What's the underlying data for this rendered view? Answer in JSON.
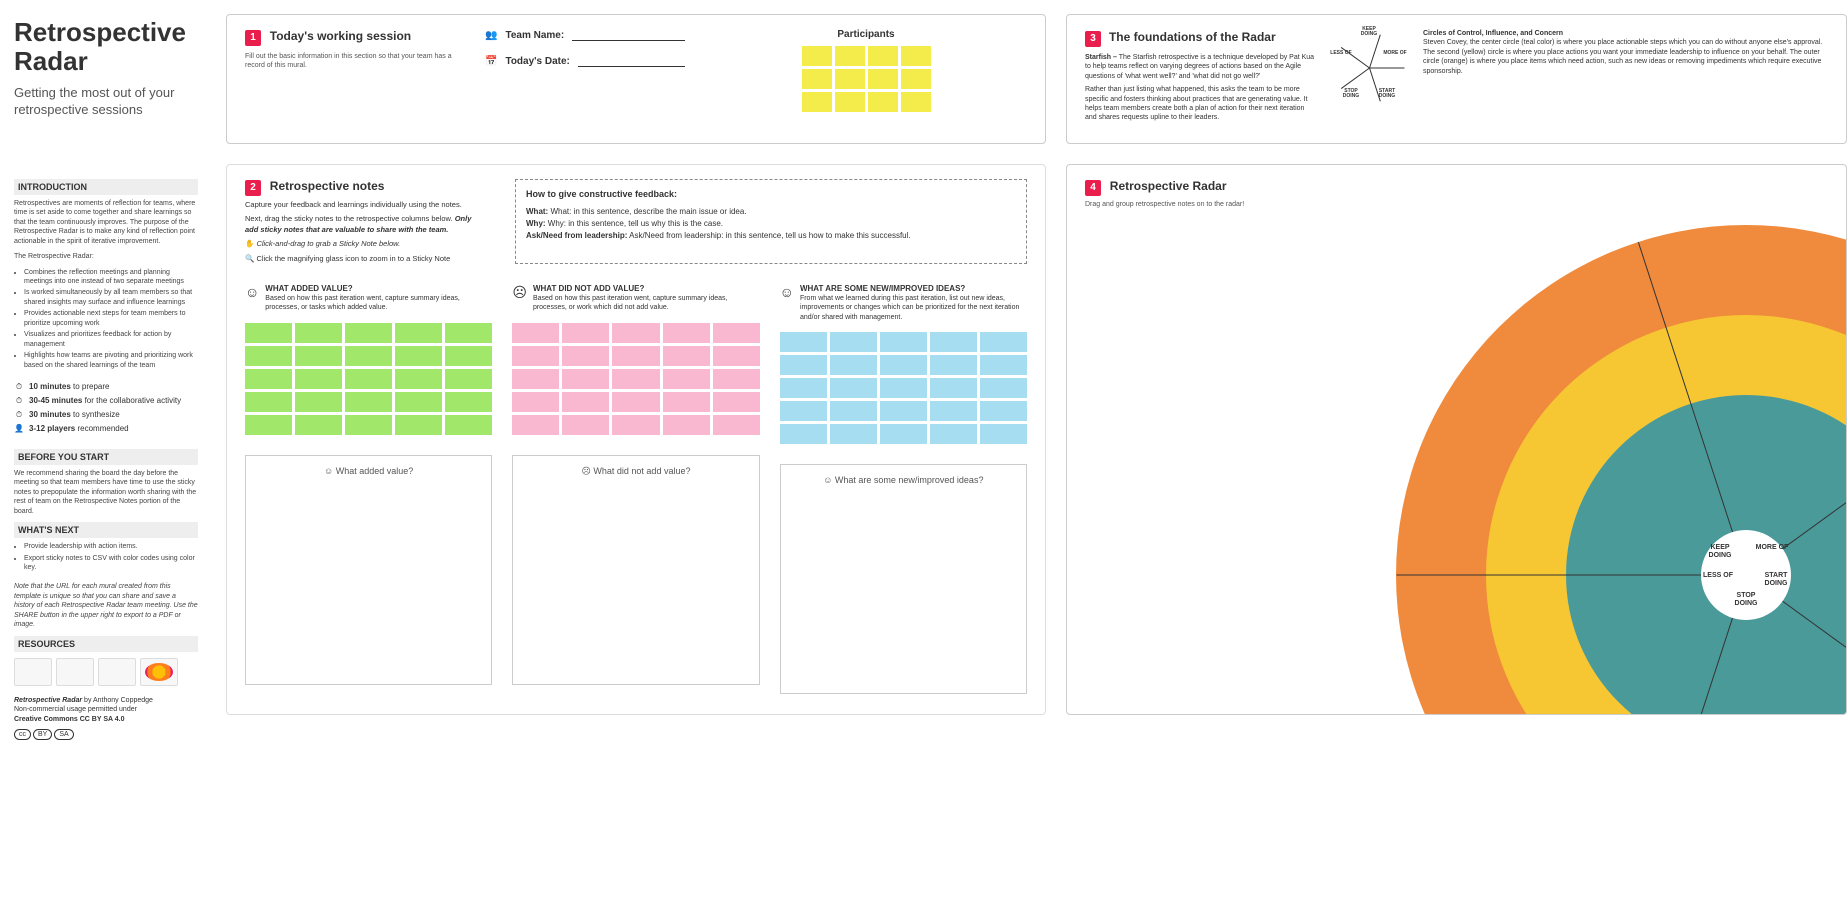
{
  "sidebar": {
    "title": "Retrospective Radar",
    "subtitle": "Getting the most out of your retrospective sessions",
    "intro_hdr": "INTRODUCTION",
    "intro_p1": "Retrospectives are moments of reflection for teams, where time is set aside to come together and share learnings so that the team continuously improves. The purpose of the Retrospective Radar is to make any kind of reflection point actionable in the spirit of iterative improvement.",
    "intro_lead": "The Retrospective Radar:",
    "intro_bullets": [
      "Combines the reflection meetings and planning meetings into one instead of two separate meetings",
      "Is worked simultaneously by all team members so that shared insights may surface and influence learnings",
      "Provides actionable next steps for team members to prioritize upcoming work",
      "Visualizes and prioritizes feedback for action by management",
      "Highlights how teams are pivoting and prioritizing work based on the shared learnings of the team"
    ],
    "timing": [
      {
        "icon": "⏱",
        "bold": "10 minutes",
        "rest": "to prepare"
      },
      {
        "icon": "⏱",
        "bold": "30-45 minutes",
        "rest": "for the collaborative activity"
      },
      {
        "icon": "⏱",
        "bold": "30 minutes",
        "rest": "to synthesize"
      },
      {
        "icon": "👤",
        "bold": "3-12 players",
        "rest": "recommended"
      }
    ],
    "before_hdr": "BEFORE YOU START",
    "before_txt": "We recommend sharing the board the day before the meeting so that team members have time to use the sticky notes to prepopulate the information worth sharing with the rest of team on the Retrospective Notes portion of the board.",
    "next_hdr": "WHAT'S NEXT",
    "next_bullets": [
      "Provide leadership with action items.",
      "Export sticky notes to CSV with color codes using color key."
    ],
    "next_note": "Note that the URL for each mural created from this template is unique so that you can share and save a history of each Retrospective Radar team meeting. Use the SHARE button in the upper right to export to a PDF or image.",
    "resources_hdr": "RESOURCES",
    "credit_bold": "Retrospective Radar",
    "credit_rest": "by Anthony Coppedge",
    "license1": "Non-commercial usage permitted under",
    "license2": "Creative Commons CC BY SA 4.0"
  },
  "panel1": {
    "badge": "1",
    "title": "Today's working session",
    "desc": "Fill out the basic information in this section so that your team has a record of this mural.",
    "team_label": "Team Name:",
    "date_label": "Today's Date:",
    "participants_label": "Participants",
    "sticky_color": "#f4ec4a",
    "sticky_grid": {
      "cols": 4,
      "rows": 3
    }
  },
  "panel3": {
    "badge": "3",
    "title": "The foundations of the Radar",
    "starfish_title": "Starfish –",
    "starfish_txt": "The Starfish retrospective is a technique developed by Pat Kua to help teams reflect on varying degrees of actions based on the Agile questions of 'what went well?' and 'what did not go well?'",
    "starfish_txt2": "Rather than just listing what happened, this asks the team to be more specific and fosters thinking about practices that are generating value. It helps team members create both a plan of action for their next iteration and shares requests upline to their leaders.",
    "circles_title": "Circles of Control, Influence, and Concern",
    "circles_txt": "Steven Covey, the center circle (teal color) is where you place actionable steps which you can do without anyone else's approval. The second (yellow) circle is where you place actions you want your immediate leadership to influence on your behalf. The outer circle (orange) is where you place items which need action, such as new ideas or removing impediments which require executive sponsorship.",
    "mini_labels": [
      "KEEP DOING",
      "MORE OF",
      "START DOING",
      "STOP DOING",
      "LESS OF"
    ]
  },
  "panel2": {
    "badge": "2",
    "title": "Retrospective notes",
    "intro1": "Capture your feedback and learnings individually using the notes.",
    "intro2": "Next, drag the sticky notes to the retrospective columns below.",
    "intro3": "Only add sticky notes that are valuable to share with the team.",
    "hint1": "Click-and-drag to grab a Sticky Note below.",
    "hint2": "Click the magnifying glass icon to zoom in to a Sticky Note",
    "fb_title": "How to give constructive feedback:",
    "fb_what": "What: in this sentence, describe the main issue or idea.",
    "fb_why": "Why: in this sentence, tell us why this is the case.",
    "fb_ask": "Ask/Need from leadership: in this sentence, tell us how to make this successful.",
    "cols": [
      {
        "icon": "☺",
        "hdr": "WHAT ADDED VALUE?",
        "desc": "Based on how this past iteration went, capture summary ideas, processes, or tasks which added value.",
        "color": "#a1e86a",
        "drop": "☺ What added value?"
      },
      {
        "icon": "☹",
        "hdr": "WHAT DID NOT ADD VALUE?",
        "desc": "Based on how this past iteration went, capture summary ideas, processes, or work which did not add value.",
        "color": "#f9b8cf",
        "drop": "☹ What did not add value?"
      },
      {
        "icon": "☺",
        "hdr": "WHAT ARE SOME NEW/IMPROVED IDEAS?",
        "desc": "From what we learned during this past iteration, list out new ideas, improvements or changes which can be prioritized for the next iteration and/or shared with management.",
        "color": "#a6ddf0",
        "drop": "☺ What are some new/improved ideas?"
      }
    ],
    "sticky_grid": {
      "cols": 5,
      "rows": 5
    }
  },
  "panel4": {
    "badge": "4",
    "title": "Retrospective Radar",
    "desc": "Drag and group retrospective notes on to the radar!",
    "rings": [
      {
        "diameter": 700,
        "color": "#f08a3c"
      },
      {
        "diameter": 520,
        "color": "#f6c733"
      },
      {
        "diameter": 360,
        "color": "#4a9a9a"
      },
      {
        "diameter": 90,
        "color": "#ffffff"
      }
    ],
    "spoke_angles": [
      -54,
      18,
      90,
      162,
      234
    ],
    "labels": {
      "keep": "KEEP DOING",
      "more": "MORE OF",
      "start": "START DOING",
      "stop": "STOP DOING",
      "less": "LESS OF"
    }
  }
}
